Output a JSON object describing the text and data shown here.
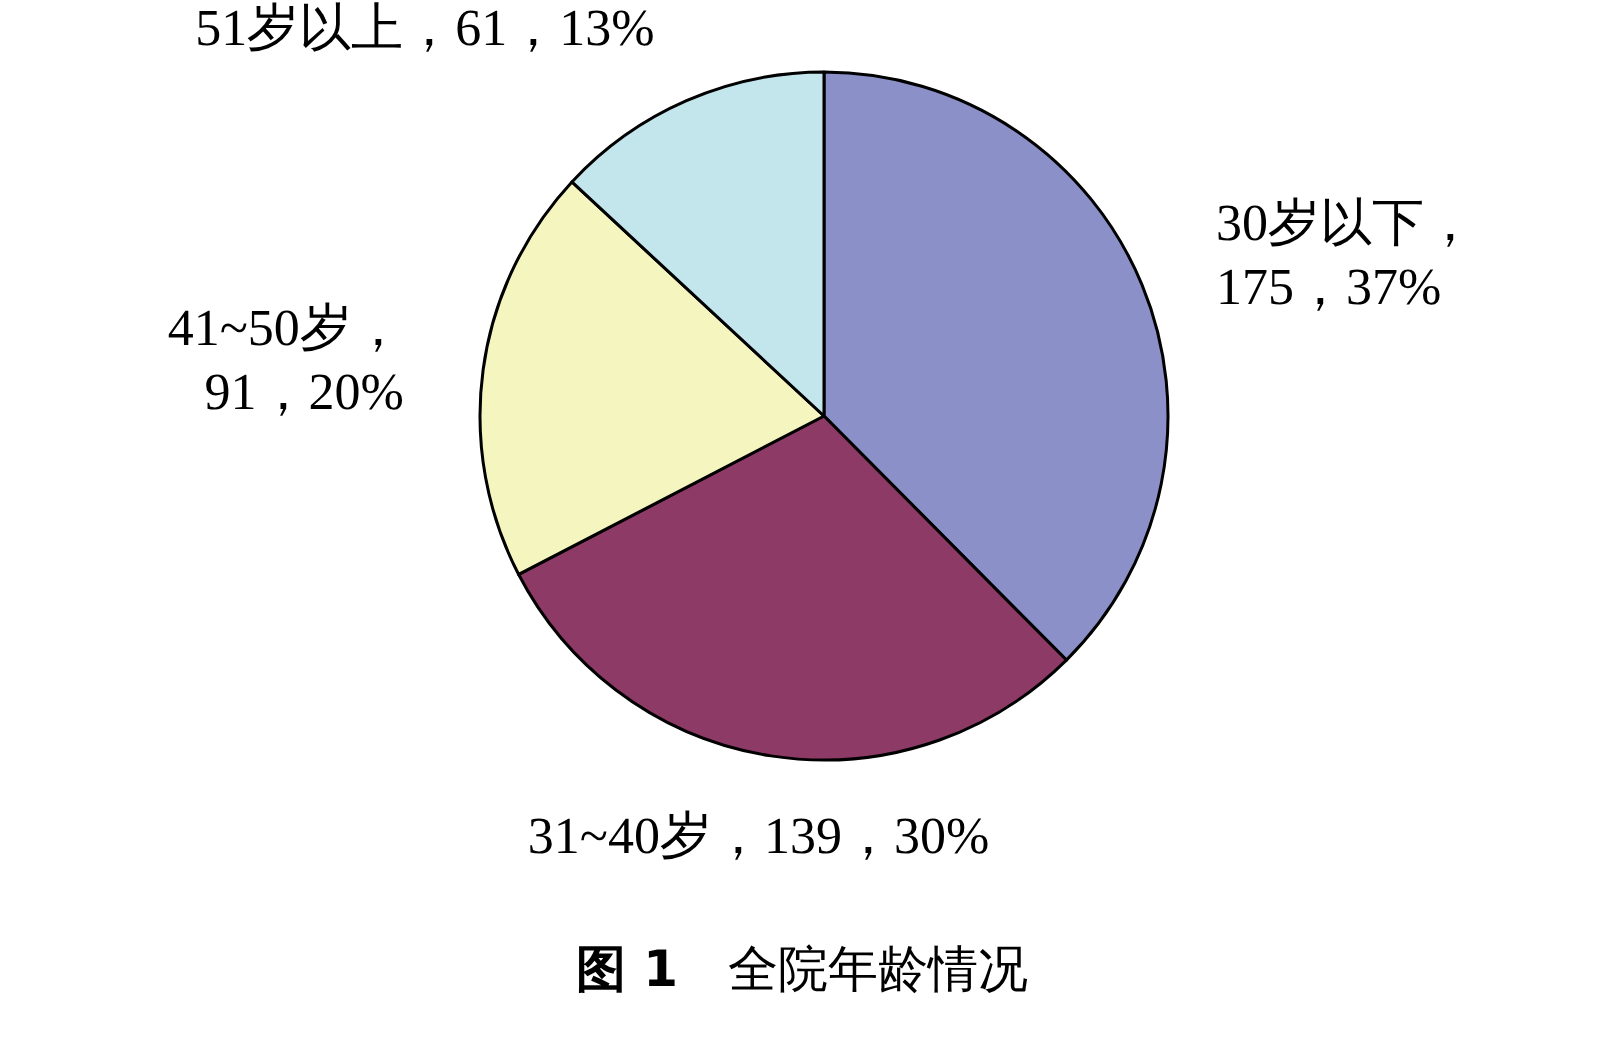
{
  "chart_data": {
    "type": "pie",
    "title": "**图 1**　全院年龄情况",
    "categories": [
      "30岁以下",
      "31~40岁",
      "41~50岁",
      "51岁以上"
    ],
    "values": [
      175,
      139,
      91,
      61
    ],
    "colors": [
      "#8b91c8",
      "#8e3a67",
      "#f5f5c0",
      "#c3e5ec"
    ],
    "value_labels": [
      "，175，37%",
      "，139，30%",
      "，91，20%",
      "，61，13%"
    ]
  }
}
